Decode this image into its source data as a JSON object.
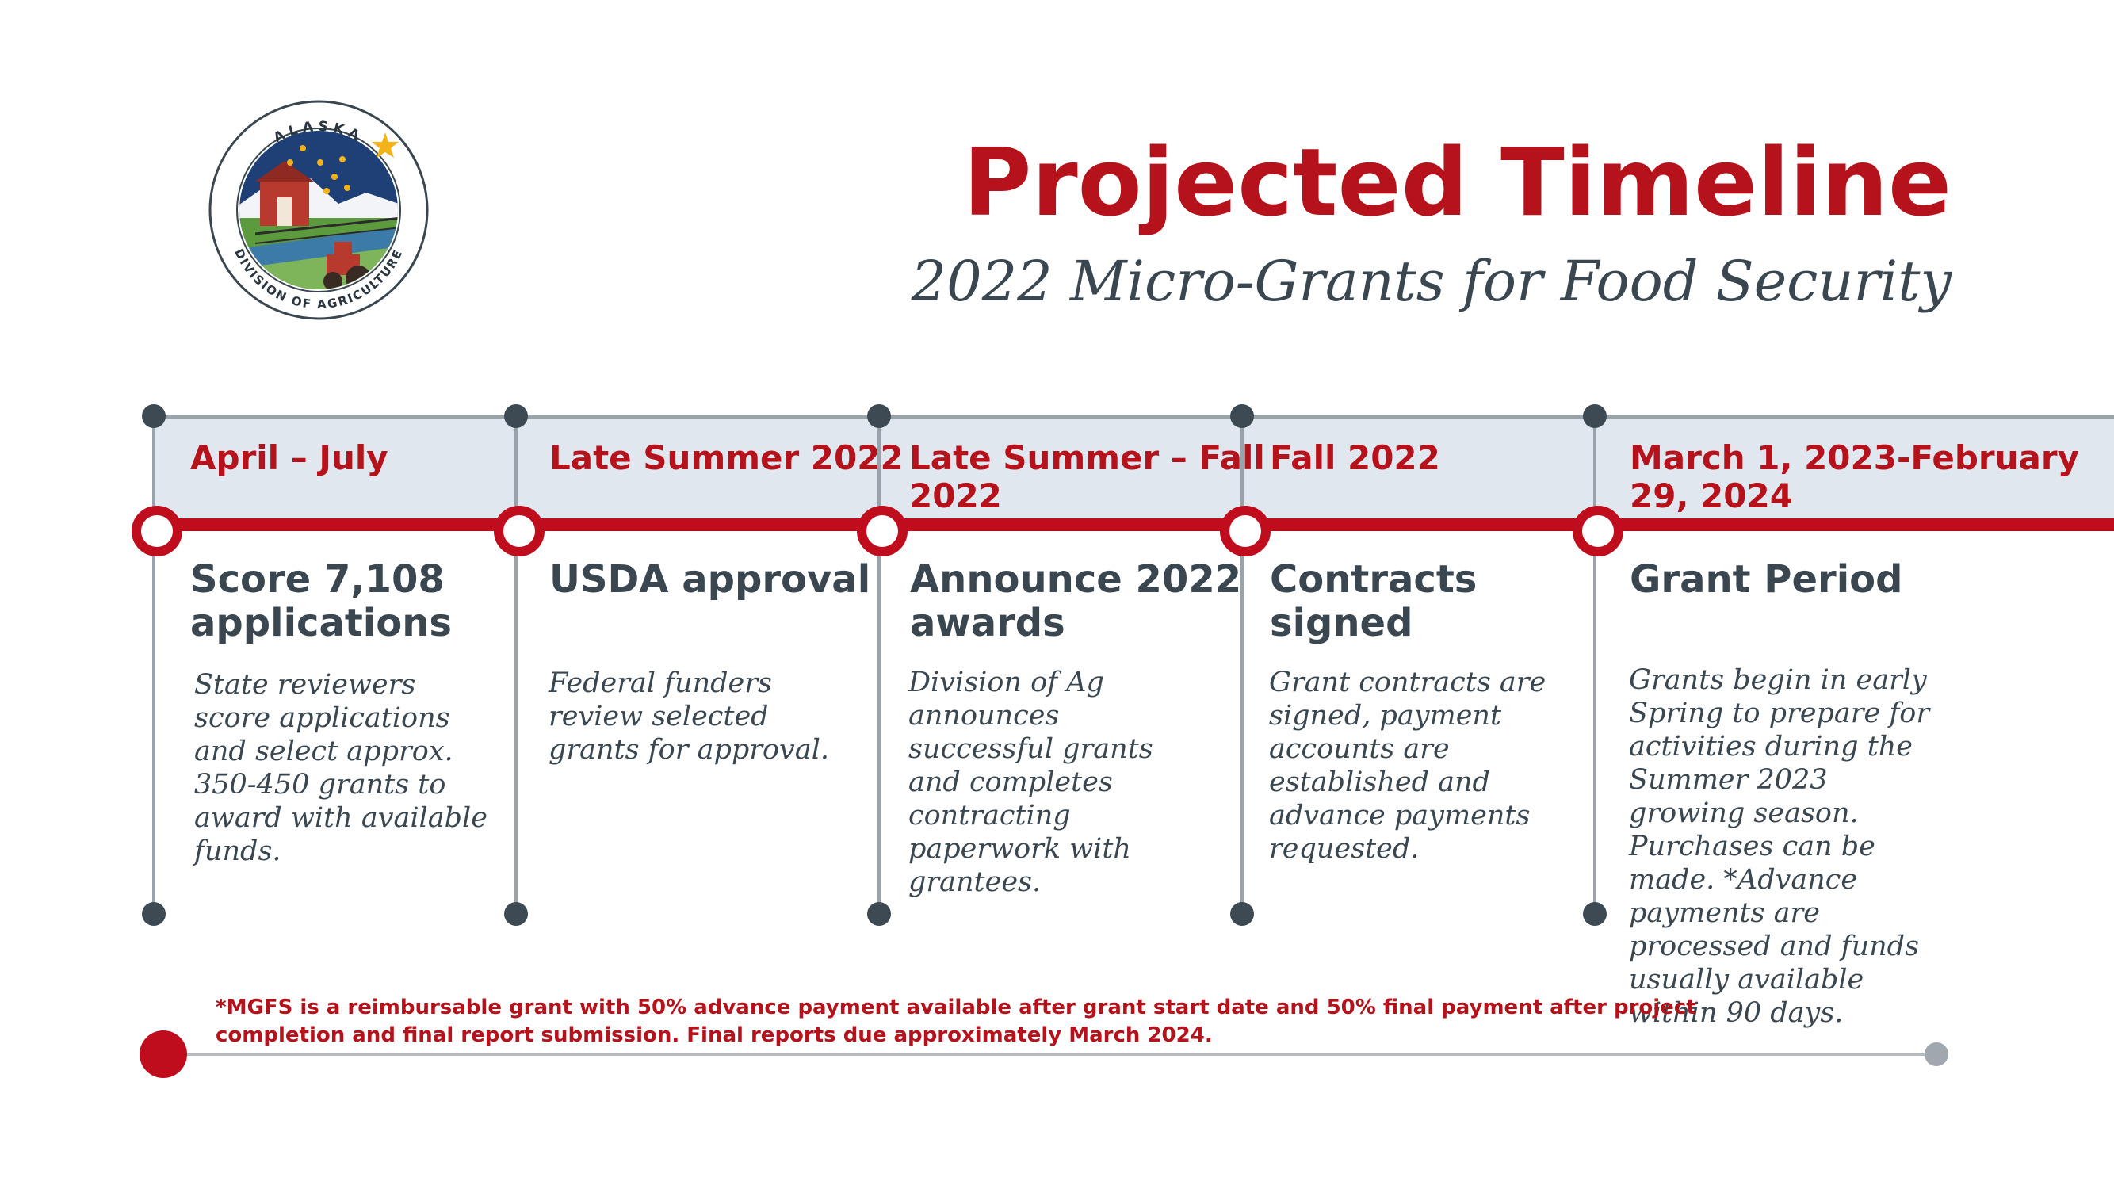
{
  "header": {
    "title": "Projected Timeline",
    "subtitle": "2022 Micro-Grants for Food Security"
  },
  "logo": {
    "top_text": "ALASKA",
    "bottom_text": "DIVISION OF AGRICULTURE"
  },
  "milestones": [
    {
      "date": "April – July",
      "heading": "Score 7,108 applications",
      "description": "State reviewers score applications and select approx. 350-450 grants to award with available funds."
    },
    {
      "date": "Late Summer 2022",
      "heading": "USDA approval",
      "description": "Federal funders review selected grants for approval."
    },
    {
      "date": "Late Summer – Fall 2022",
      "heading": "Announce 2022 awards",
      "description": "Division of Ag announces successful grants and completes contracting paperwork with grantees."
    },
    {
      "date": "Fall 2022",
      "heading": "Contracts signed",
      "description": "Grant contracts are signed, payment accounts are established and advance payments requested."
    },
    {
      "date": "March 1, 2023-February 29, 2024",
      "heading": "Grant Period",
      "description": "Grants begin in early Spring to prepare for activities during the Summer 2023 growing season. Purchases can be made. *Advance payments are processed and funds usually available within 90 days."
    }
  ],
  "footnote": "*MGFS is a reimbursable grant with 50% advance payment available after grant start date and 50% final payment after project completion and final report submission. Final reports due approximately March 2024.",
  "colors": {
    "accent_red": "#c00d1e",
    "title_red": "#b5121b",
    "text_slate": "#3a4750",
    "band": "#e1e7ee"
  }
}
